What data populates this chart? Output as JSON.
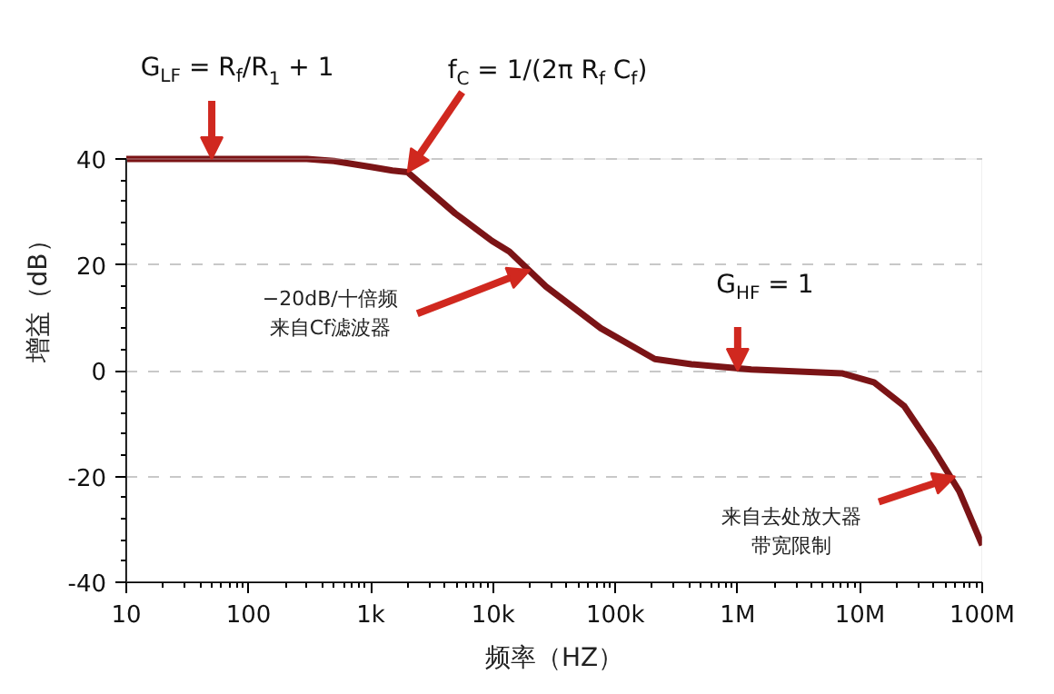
{
  "chart_data": {
    "type": "line",
    "xlabel": "频率（HZ）",
    "ylabel": "增益（dB）",
    "log": "x",
    "x": [
      10,
      100,
      300,
      500,
      1000,
      1500,
      2000,
      4900,
      9800,
      13600,
      27000,
      76000,
      210000,
      420000,
      1290000,
      7100000,
      13000000,
      23000000,
      40000000,
      65000000,
      100000000
    ],
    "series": [
      {
        "color": "#7b1416",
        "values": [
          40,
          40,
          40,
          39.6,
          38.5,
          37.8,
          37.5,
          29.7,
          24.5,
          22.5,
          15.9,
          8.0,
          2.2,
          1.2,
          0.2,
          -0.5,
          -2.2,
          -6.7,
          -14.9,
          -22.8,
          -33
        ]
      }
    ],
    "xlim": [
      10,
      100000000
    ],
    "ylim": [
      -40,
      40
    ],
    "xticks": [
      10,
      100,
      {
        "value": 1000,
        "label": "1k"
      },
      {
        "value": 10000,
        "label": "10k"
      },
      {
        "value": 100000,
        "label": "100k"
      },
      {
        "value": 1000000,
        "label": "1M"
      },
      {
        "value": 10000000,
        "label": "10M"
      },
      {
        "value": 100000000,
        "label": "100M"
      }
    ],
    "yticks": [
      -40,
      -20,
      0,
      20,
      40
    ],
    "grid": "y",
    "marker": "none",
    "line_style": "solid",
    "annotations": [
      {
        "text": "G$_{LF}$ = R$_{f}$/R$_{1}$ + 1",
        "x": 50,
        "y": 40
      },
      {
        "text": "f$_{C}$ = 1/(2π R$_{f}$ C$_{f}$)",
        "x": 2000,
        "y": 37.5
      },
      {
        "text": "−20dB/十倍频来自Cf滤波器",
        "x": 20000,
        "y": 19
      },
      {
        "text": "G$_{HF}$ = 1",
        "x": 1000000,
        "y": 0
      },
      {
        "text": "来自去处放大器带宽限制",
        "x": 60000000,
        "y": -20
      }
    ]
  }
}
